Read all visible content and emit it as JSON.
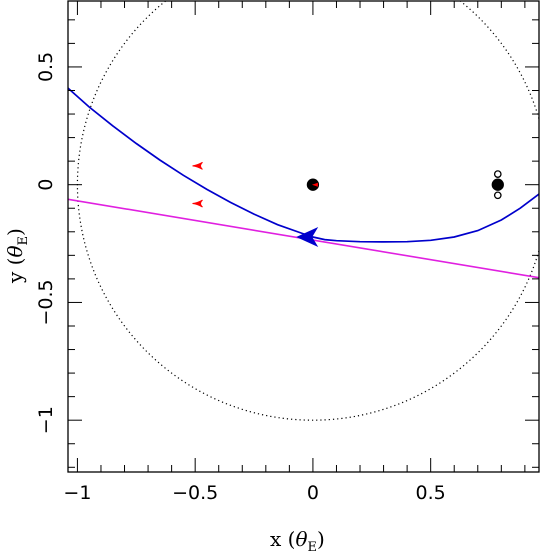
{
  "chart_data": {
    "type": "scatter",
    "title": "",
    "xlabel": "x",
    "xlabel_unit": "θ",
    "ylabel": "y",
    "ylabel_unit": "θ",
    "unit_subscript": "E",
    "xlim": [
      -1.04,
      0.96
    ],
    "ylim": [
      -1.22,
      0.78
    ],
    "x_major_ticks": [
      -1,
      -0.5,
      0,
      0.5
    ],
    "x_tick_labels": [
      "−1",
      "−0.5",
      "0",
      "0.5"
    ],
    "y_major_ticks": [
      -1,
      -0.5,
      0,
      0.5
    ],
    "y_tick_labels": [
      "−1",
      "−0.5",
      "0",
      "0.5"
    ],
    "x_minor_step": 0.1,
    "y_minor_step": 0.1,
    "grid": false,
    "colors": {
      "trajectory": "#0000cc",
      "source_line": "#e020e0",
      "caustic": "#ff0000",
      "einstein_ring": "#000000",
      "lens": "#000000"
    },
    "einstein_ring": {
      "center": [
        0,
        0
      ],
      "radius": 1.0,
      "style": "dotted"
    },
    "source_line": {
      "points": [
        [
          -1.04,
          -0.062
        ],
        [
          0.96,
          -0.395
        ]
      ]
    },
    "trajectory": {
      "points": [
        [
          -1.04,
          0.41
        ],
        [
          -0.95,
          0.33
        ],
        [
          -0.85,
          0.25
        ],
        [
          -0.75,
          0.175
        ],
        [
          -0.65,
          0.105
        ],
        [
          -0.55,
          0.04
        ],
        [
          -0.45,
          -0.02
        ],
        [
          -0.35,
          -0.075
        ],
        [
          -0.25,
          -0.125
        ],
        [
          -0.15,
          -0.17
        ],
        [
          -0.05,
          -0.205
        ],
        [
          0.0,
          -0.222
        ],
        [
          0.05,
          -0.233
        ],
        [
          0.1,
          -0.238
        ],
        [
          0.2,
          -0.242
        ],
        [
          0.3,
          -0.243
        ],
        [
          0.4,
          -0.242
        ],
        [
          0.5,
          -0.236
        ],
        [
          0.6,
          -0.222
        ],
        [
          0.7,
          -0.195
        ],
        [
          0.8,
          -0.15
        ],
        [
          0.88,
          -0.1
        ],
        [
          0.96,
          -0.04
        ]
      ],
      "direction_arrow_at": [
        -0.02,
        -0.222
      ]
    },
    "caustics": [
      {
        "center": [
          -0.49,
          0.08
        ]
      },
      {
        "center": [
          -0.49,
          -0.08
        ]
      },
      {
        "center": [
          0.0,
          0.0
        ]
      }
    ],
    "lenses": [
      {
        "x": 0.0,
        "y": 0.0,
        "filled": true,
        "size": "large"
      },
      {
        "x": 0.785,
        "y": 0.0,
        "filled": true,
        "size": "large"
      },
      {
        "x": 0.785,
        "y": 0.045,
        "filled": false,
        "size": "small"
      },
      {
        "x": 0.785,
        "y": -0.045,
        "filled": false,
        "size": "small"
      }
    ]
  }
}
